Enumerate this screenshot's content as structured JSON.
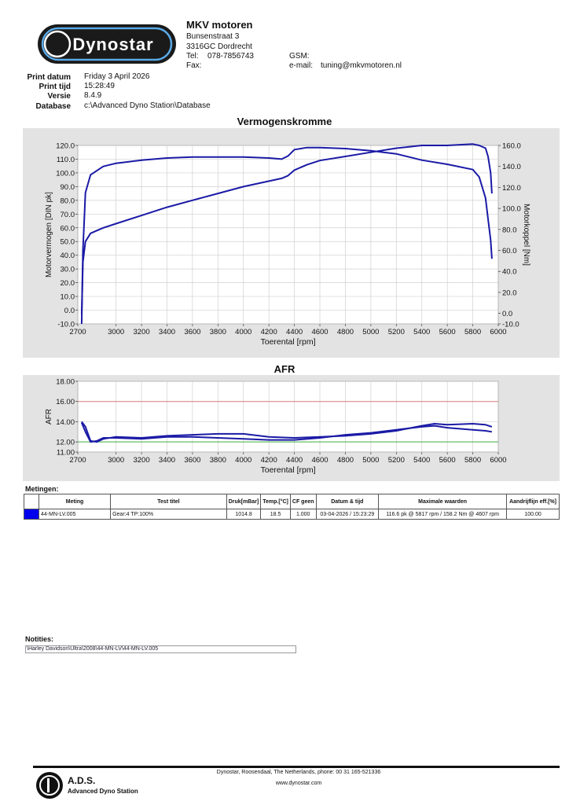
{
  "header": {
    "logo_text": "Dynostar",
    "company": "MKV motoren",
    "street": "Bunsenstraat 3",
    "city": "3316GC Dordrecht",
    "tel_label": "Tel:",
    "tel_value": "078-7856743",
    "fax_label": "Fax:",
    "gsm_label": "GSM:",
    "email_label": "e-mail:",
    "email_value": "tuning@mkvmotoren.nl"
  },
  "meta": [
    {
      "label": "Print datum",
      "value": "Friday 3 April 2026"
    },
    {
      "label": "Print tijd",
      "value": "15:28:49"
    },
    {
      "label": "Versie",
      "value": "8.4.9"
    },
    {
      "label": "Database",
      "value": "c:\\Advanced Dyno Station\\Database"
    }
  ],
  "chart_data": [
    {
      "type": "line",
      "title": "Vermogenskromme",
      "xlabel": "Toerental [rpm]",
      "ylabel": "Motorvermogen [DIN pk]",
      "y2label": "Motorkoppel [Nm]",
      "xlim": [
        2700,
        6000
      ],
      "ylim": [
        -10,
        120
      ],
      "y2lim": [
        -10,
        160
      ],
      "xticks": [
        "2700",
        "3000",
        "3200",
        "3400",
        "3600",
        "3800",
        "4000",
        "4200",
        "4400",
        "4600",
        "4800",
        "5000",
        "5200",
        "5400",
        "5600",
        "5800",
        "6000"
      ],
      "yticks": [
        "-10.0",
        "0.0",
        "10.0",
        "20.0",
        "30.0",
        "40.0",
        "50.0",
        "60.0",
        "70.0",
        "80.0",
        "90.0",
        "100.0",
        "110.0",
        "120.0"
      ],
      "y2ticks": [
        "-10.0",
        "0.0",
        "20.0",
        "40.0",
        "60.0",
        "80.0",
        "100.0",
        "120.0",
        "140.0",
        "160.0"
      ],
      "grid": true,
      "series": [
        {
          "axis": "left",
          "color": "#1a1aa6",
          "x": [
            2730,
            2740,
            2760,
            2800,
            2900,
            3000,
            3200,
            3400,
            3600,
            3800,
            4000,
            4200,
            4300,
            4350,
            4400,
            4500,
            4600,
            4800,
            5000,
            5200,
            5400,
            5600,
            5800,
            5850,
            5900,
            5920,
            5940,
            5950
          ],
          "y": [
            -3,
            35,
            50,
            56,
            60,
            63,
            69,
            75,
            80,
            85,
            90,
            94,
            96,
            98,
            102,
            106,
            109,
            112,
            115,
            118,
            120,
            120,
            121,
            120,
            118,
            112,
            100,
            85
          ]
        },
        {
          "axis": "right",
          "color": "#1a1aa6",
          "x": [
            2730,
            2740,
            2760,
            2800,
            2900,
            3000,
            3200,
            3400,
            3600,
            3800,
            4000,
            4200,
            4300,
            4350,
            4400,
            4500,
            4600,
            4800,
            5000,
            5200,
            5400,
            5600,
            5800,
            5850,
            5900,
            5920,
            5940,
            5950
          ],
          "y": [
            -10,
            60,
            115,
            132,
            140,
            143,
            146,
            148,
            149,
            149,
            149,
            148,
            147,
            150,
            156,
            158,
            158,
            157,
            155,
            152,
            146,
            142,
            137,
            130,
            110,
            90,
            70,
            52
          ]
        }
      ]
    },
    {
      "type": "line",
      "title": "AFR",
      "xlabel": "Toerental [rpm]",
      "ylabel": "AFR",
      "xlim": [
        2700,
        6000
      ],
      "ylim": [
        11,
        18
      ],
      "xticks": [
        "2700",
        "3000",
        "3200",
        "3400",
        "3600",
        "3800",
        "4000",
        "4200",
        "4400",
        "4600",
        "4800",
        "5000",
        "5200",
        "5400",
        "5600",
        "5800",
        "6000"
      ],
      "yticks": [
        "11.00",
        "12.00",
        "14.00",
        "16.00",
        "18.00"
      ],
      "grid": true,
      "reference_lines": [
        {
          "y": 16.0,
          "color": "#d98080"
        },
        {
          "y": 12.0,
          "color": "#40b040"
        }
      ],
      "series": [
        {
          "color": "#1a1aa6",
          "x": [
            2730,
            2760,
            2800,
            2850,
            2900,
            3000,
            3200,
            3400,
            3600,
            3800,
            4000,
            4200,
            4400,
            4600,
            4800,
            5000,
            5200,
            5400,
            5500,
            5600,
            5800,
            5900,
            5950
          ],
          "y": [
            14.0,
            13.5,
            12.1,
            12.0,
            12.3,
            12.5,
            12.4,
            12.6,
            12.7,
            12.8,
            12.8,
            12.5,
            12.4,
            12.5,
            12.6,
            12.8,
            13.1,
            13.6,
            13.8,
            13.7,
            13.8,
            13.7,
            13.5
          ]
        },
        {
          "color": "#1a1aa6",
          "x": [
            2730,
            2760,
            2800,
            2850,
            2900,
            3000,
            3200,
            3400,
            3600,
            3800,
            4000,
            4200,
            4400,
            4600,
            4800,
            5000,
            5200,
            5400,
            5500,
            5600,
            5800,
            5900,
            5950
          ],
          "y": [
            13.9,
            13.0,
            12.0,
            12.1,
            12.4,
            12.4,
            12.3,
            12.5,
            12.5,
            12.4,
            12.3,
            12.2,
            12.2,
            12.4,
            12.7,
            12.9,
            13.2,
            13.5,
            13.6,
            13.4,
            13.2,
            13.1,
            13.0
          ]
        }
      ]
    }
  ],
  "measurements": {
    "section_label": "Metingen:",
    "columns": [
      "",
      "Meting",
      "Test titel",
      "Druk[mBar]",
      "Temp.[°C]",
      "CF geen",
      "Datum & tijd",
      "Maximale waarden",
      "Aandrijflijn eff.[%]"
    ],
    "rows": [
      {
        "color": "#0000ee",
        "meting": "44-MN-LV.005",
        "titel": "Gear:4 TP:100%",
        "druk": "1014.8",
        "temp": "18.5",
        "cf": "1.000",
        "datum": "03-04-2026 / 15:23:29",
        "max": "116.6 pk @ 5817 rpm / 158.2 Nm @ 4607 rpm",
        "eff": "100.00"
      }
    ]
  },
  "notes": {
    "label": "Notities:",
    "text": "\\Harley Davidson\\Ultra\\2008\\44-MN-LV\\44-MN-LV.005"
  },
  "footer": {
    "brand": "A.D.S.",
    "subtitle": "Advanced Dyno Station",
    "line1": "Dynostar,  Roosendaal, The Netherlands, phone: 00 31 165-521336",
    "line2": "www.dynostar.com"
  }
}
